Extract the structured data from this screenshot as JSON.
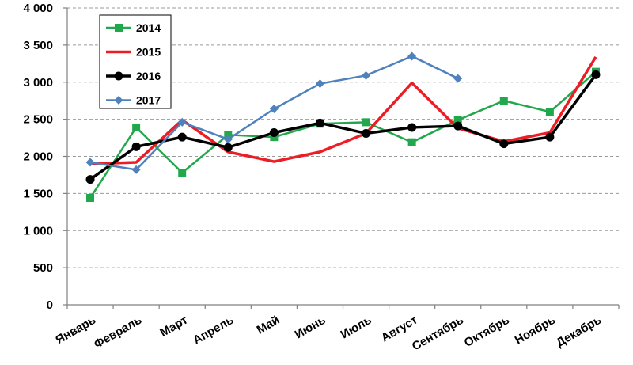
{
  "chart_data": {
    "type": "line",
    "title": "",
    "xlabel": "",
    "ylabel": "",
    "categories": [
      "Январь",
      "Февраль",
      "Март",
      "Апрель",
      "Май",
      "Июнь",
      "Июль",
      "Август",
      "Сентябрь",
      "Октябрь",
      "Ноябрь",
      "Декабрь"
    ],
    "ylim": [
      0,
      4000
    ],
    "yticks": [
      0,
      500,
      1000,
      1500,
      2000,
      2500,
      3000,
      3500,
      4000
    ],
    "ytick_labels": [
      "0",
      "500",
      "1 000",
      "1 500",
      "2 000",
      "2 500",
      "3 000",
      "3 500",
      "4 000"
    ],
    "grid": "horizontal-dashed",
    "legend_position": "top-left",
    "series": [
      {
        "name": "2014",
        "color": "#22a84c",
        "marker": "square",
        "line_width": 2.5,
        "values": [
          1440,
          2390,
          1780,
          2290,
          2260,
          2440,
          2460,
          2190,
          2490,
          2750,
          2600,
          3140
        ]
      },
      {
        "name": "2015",
        "color": "#ee1c25",
        "marker": "none",
        "line_width": 3.5,
        "values": [
          1900,
          1920,
          2490,
          2060,
          1930,
          2060,
          2310,
          2990,
          2380,
          2200,
          2320,
          3340
        ]
      },
      {
        "name": "2016",
        "color": "#000000",
        "marker": "circle",
        "line_width": 3.5,
        "values": [
          1690,
          2130,
          2260,
          2120,
          2320,
          2450,
          2310,
          2390,
          2410,
          2170,
          2260,
          3100
        ]
      },
      {
        "name": "2017",
        "color": "#4f81bd",
        "marker": "diamond",
        "line_width": 2.5,
        "values": [
          1920,
          1820,
          2460,
          2230,
          2640,
          2980,
          3090,
          3350,
          3050,
          null,
          null,
          null
        ]
      }
    ]
  }
}
